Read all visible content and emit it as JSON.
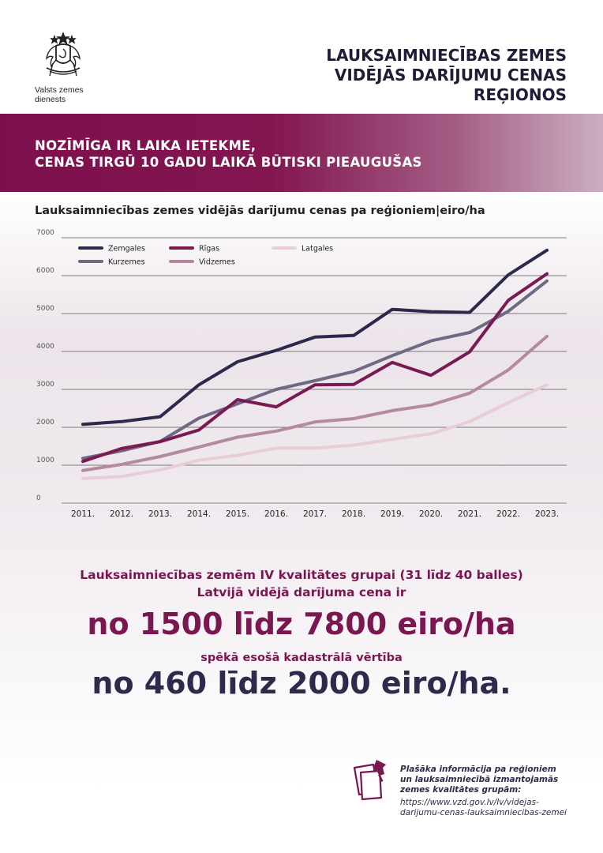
{
  "header": {
    "logo_text": [
      "Valsts zemes",
      "dienests"
    ],
    "title_lines": [
      "LAUKSAIMNIECĪBAS ZEMES",
      "VIDĒJĀS DARĪJUMU CENAS",
      "REĢIONOS"
    ]
  },
  "banner": {
    "lines": [
      "NOZĪMĪGA IR LAIKA IETEKME,",
      "CENAS TIRGŪ 10 GADU LAIKĀ BŪTISKI PIEAUGUŠAS"
    ]
  },
  "chart_data": {
    "type": "line",
    "title": "Lauksaimniecības zemes vidējās darījumu cenas pa reģioniem|eiro/ha",
    "xlabel": "",
    "ylabel": "",
    "ylim": [
      0,
      7000
    ],
    "yticks": [
      "0",
      "1000",
      "2000",
      "3000",
      "4000",
      "5000",
      "6000",
      "7000"
    ],
    "grid": true,
    "legend_position": "top-left",
    "x": [
      "2011.",
      "2012.",
      "2013.",
      "2014.",
      "2015.",
      "2016.",
      "2017.",
      "2018.",
      "2019.",
      "2020.",
      "2021.",
      "2022.",
      "2023."
    ],
    "series": [
      {
        "name": "Zemgales",
        "color": "#2b2a4c",
        "values": [
          2080,
          2150,
          2280,
          3120,
          3730,
          4030,
          4380,
          4420,
          5110,
          5050,
          5030,
          6020,
          6670
        ]
      },
      {
        "name": "Rīgas",
        "color": "#7a1a52",
        "values": [
          1100,
          1440,
          1620,
          1930,
          2730,
          2540,
          3120,
          3130,
          3710,
          3370,
          3990,
          5350,
          6050
        ]
      },
      {
        "name": "Latgales",
        "color": "#e8cdd8",
        "values": [
          650,
          700,
          880,
          1130,
          1260,
          1450,
          1450,
          1530,
          1680,
          1830,
          2150,
          2650,
          3120
        ]
      },
      {
        "name": "Kurzemes",
        "color": "#6f6a84",
        "values": [
          1180,
          1380,
          1630,
          2240,
          2620,
          3000,
          3230,
          3470,
          3890,
          4280,
          4500,
          5060,
          5860
        ]
      },
      {
        "name": "Vidzemes",
        "color": "#b48a9f",
        "values": [
          860,
          1020,
          1230,
          1480,
          1740,
          1900,
          2140,
          2230,
          2440,
          2590,
          2900,
          3510,
          4400
        ]
      }
    ]
  },
  "info": {
    "line1": "Lauksaimniecības zemēm IV kvalitātes grupai (31 līdz 40 balles)",
    "line2": "Latvijā vidējā darījuma cena ir",
    "big1": "no 1500 līdz 7800 eiro/ha",
    "line3": "spēkā esošā kadastrālā vērtība",
    "big2": "no 460 līdz 2000 eiro/ha."
  },
  "footer": {
    "text_lines": [
      "Plašāka informācija pa reģioniem",
      "un lauksaimniecībā izmantojamās",
      "zemes kvalitātes grupām:"
    ],
    "url_lines": [
      "https://www.vzd.gov.lv/lv/videjas-",
      "darijumu-cenas-lauksaimniecibas-zemei"
    ]
  },
  "colors": {
    "brand": "#7a1650",
    "dark": "#2d2a4c"
  }
}
